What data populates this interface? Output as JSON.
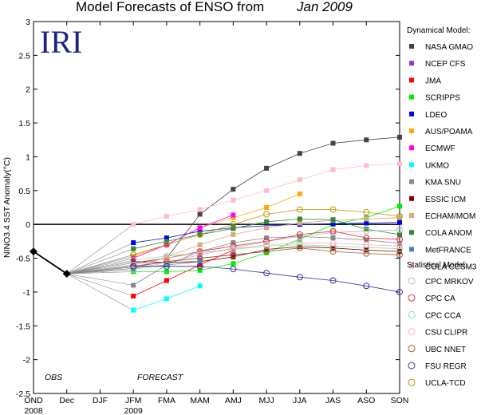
{
  "chart_data": {
    "type": "line",
    "title": {
      "prefix": "Model Forecasts of ENSO from",
      "italic": "Jan 2009"
    },
    "logo": "IRI",
    "ylabel": "NINO3.4 SST Anomaly(°C)",
    "ylim": [
      -2.5,
      3
    ],
    "yticks": [
      "-2.5",
      "-2",
      "-1.5",
      "-1",
      "-0.5",
      "0",
      "0.5",
      "1",
      "1.5",
      "2",
      "2.5",
      "3"
    ],
    "x_categories": [
      "OND",
      "Dec",
      "DJF",
      "JFM",
      "FMA",
      "MAM",
      "AMJ",
      "MJJ",
      "JJA",
      "JAS",
      "ASO",
      "SON"
    ],
    "x_year_labels": [
      {
        "at": "OND",
        "text": "2008"
      },
      {
        "at": "JFM",
        "text": "2009"
      }
    ],
    "annotations": {
      "obs": "OBS",
      "forecast": "FORECAST"
    },
    "grid": false,
    "legend_position": "right",
    "observed": {
      "x": [
        "OND",
        "Dec"
      ],
      "values": [
        -0.4,
        -0.73
      ],
      "color": "#000000"
    },
    "dynamical_header": "Dynamical Model:",
    "statistical_header": "Statistical Model:",
    "series": [
      {
        "name": "NASA GMAO",
        "group": "dynamical",
        "color": "#444444",
        "values": [
          -0.57,
          -0.5,
          0.15,
          0.52,
          0.83,
          1.05,
          1.2,
          1.25,
          1.29
        ]
      },
      {
        "name": "NCEP CFS",
        "group": "dynamical",
        "color": "#9933cc",
        "values": [
          -0.63,
          -0.55,
          -0.5,
          -0.45,
          -0.4
        ]
      },
      {
        "name": "JMA",
        "group": "dynamical",
        "color": "#ff0000",
        "values": [
          -1.06,
          -0.83,
          -0.6,
          -0.38
        ]
      },
      {
        "name": "SCRIPPS",
        "group": "dynamical",
        "color": "#00ee00",
        "values": [
          -0.7,
          -0.7,
          -0.68,
          -0.58,
          -0.42,
          -0.22,
          0.0,
          0.1,
          0.27
        ]
      },
      {
        "name": "LDEO",
        "group": "dynamical",
        "color": "#0000ee",
        "values": [
          -0.27,
          -0.2,
          -0.1,
          -0.05,
          -0.02,
          0.0,
          0.01,
          0.02,
          0.03
        ]
      },
      {
        "name": "AUS/POAMA",
        "group": "dynamical",
        "color": "#ffaa00",
        "values": [
          -0.47,
          -0.3,
          -0.05,
          0.1,
          0.25,
          0.45
        ]
      },
      {
        "name": "ECMWF",
        "group": "dynamical",
        "color": "#ff00ff",
        "values": [
          -0.5,
          -0.3,
          -0.05,
          0.14
        ]
      },
      {
        "name": "UKMO",
        "group": "dynamical",
        "color": "#00ffff",
        "values": [
          -1.27,
          -1.1,
          -0.91
        ]
      },
      {
        "name": "KMA SNU",
        "group": "dynamical",
        "color": "#888888",
        "values": [
          -0.9,
          -0.6,
          -0.4,
          -0.27,
          -0.2,
          -0.18,
          -0.2,
          -0.23,
          -0.28
        ]
      },
      {
        "name": "ESSIC ICM",
        "group": "dynamical",
        "color": "#880000",
        "values": [
          -0.55,
          -0.56,
          -0.55,
          -0.48,
          -0.37,
          -0.33,
          -0.35,
          -0.38,
          -0.4
        ]
      },
      {
        "name": "ECHAM/MOM",
        "group": "dynamical",
        "color": "#ddaa77",
        "values": [
          -0.65,
          -0.48,
          -0.3,
          -0.15,
          -0.05,
          0.02,
          0.06,
          0.08,
          0.1
        ]
      },
      {
        "name": "COLA ANOM",
        "group": "dynamical",
        "color": "#338833",
        "values": [
          -0.36,
          -0.25,
          -0.15,
          -0.06,
          0.04,
          0.08,
          0.07,
          -0.07,
          -0.15
        ]
      },
      {
        "name": "MetFRANCE",
        "group": "dynamical",
        "color": "#4488bb",
        "values": [
          -0.65,
          -0.6,
          -0.55
        ]
      },
      {
        "name": "COLA CCSM3",
        "group": "dynamical",
        "color": "#ffbbcc",
        "values": [
          0.0,
          0.12,
          0.22,
          0.36,
          0.5,
          0.66,
          0.81,
          0.87,
          0.9
        ]
      },
      {
        "name": "CPC MRKOV",
        "group": "statistical",
        "color": "#bbbbbb",
        "values": [
          -0.67,
          -0.56,
          -0.45,
          -0.35,
          -0.25,
          -0.18,
          -0.12,
          -0.1,
          -0.08
        ]
      },
      {
        "name": "CPC CA",
        "group": "statistical",
        "color": "#dd3333",
        "values": [
          -0.6,
          -0.5,
          -0.4,
          -0.32,
          -0.25,
          -0.15,
          -0.1,
          -0.2,
          -0.22
        ]
      },
      {
        "name": "CPC CCA",
        "group": "statistical",
        "color": "#88ddaa",
        "values": [
          -0.53,
          -0.47,
          -0.42,
          -0.37,
          -0.32,
          -0.3,
          -0.32,
          -0.34,
          -0.36
        ]
      },
      {
        "name": "CSU CLIPR",
        "group": "statistical",
        "color": "#ffaacc",
        "values": [
          -0.6,
          -0.5,
          -0.42,
          -0.36,
          -0.3,
          -0.27,
          -0.28,
          -0.3,
          -0.32
        ]
      },
      {
        "name": "UBC NNET",
        "group": "statistical",
        "color": "#996633",
        "values": [
          -0.62,
          -0.55,
          -0.5,
          -0.45,
          -0.4,
          -0.35,
          -0.4,
          -0.43,
          -0.45
        ]
      },
      {
        "name": "FSU REGR",
        "group": "statistical",
        "color": "#333399",
        "values": [
          -0.62,
          -0.62,
          -0.62,
          -0.66,
          -0.72,
          -0.78,
          -0.83,
          -0.91,
          -1.0
        ]
      },
      {
        "name": "UCLA-TCD",
        "group": "statistical",
        "color": "#bb9900",
        "values": [
          -0.45,
          -0.3,
          -0.15,
          0.0,
          0.15,
          0.22,
          0.22,
          0.18,
          0.12
        ]
      }
    ]
  }
}
